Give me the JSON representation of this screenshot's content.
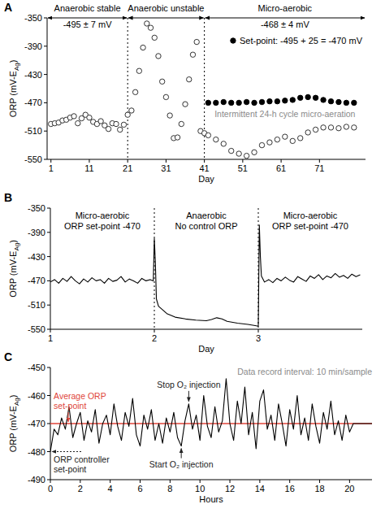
{
  "chart_data": [
    {
      "type": "scatter",
      "panel_label": "A",
      "xlabel": "Day",
      "ylabel": [
        "ORP (mV-E",
        "Ag",
        ")"
      ],
      "xlim": [
        0,
        83
      ],
      "xticks": [
        1,
        11,
        21,
        31,
        41,
        51,
        61,
        71
      ],
      "ylim": [
        -550,
        -350
      ],
      "yticks": [
        -550,
        -510,
        -470,
        -430,
        -390,
        -350
      ],
      "grid": false,
      "legend": "top-right",
      "periods": [
        {
          "label": "Anaerobic stable",
          "sublabel": "-495 ± 7 mV",
          "start": 0,
          "end": 21
        },
        {
          "label": "Anaerobic unstable",
          "start": 21,
          "end": 41
        },
        {
          "label": "Micro-aerobic",
          "sublabel": "-468 ± 4 mV",
          "start": 41,
          "end": 83
        }
      ],
      "notes": [
        "Intermittent 24-h cycle micro-aeration"
      ],
      "series": [
        {
          "marker": "open-circle",
          "color": "#333333",
          "x": [
            1,
            2,
            3,
            4,
            5,
            6,
            7,
            8,
            9,
            10,
            11,
            12,
            13,
            14,
            15,
            16,
            17,
            18,
            19,
            20,
            21,
            22,
            23,
            24,
            25,
            26,
            27,
            28,
            29,
            30,
            31,
            32,
            33,
            34,
            35,
            36,
            37,
            38,
            39,
            40,
            41,
            42,
            44,
            46,
            48,
            50,
            52,
            54,
            56,
            58,
            60,
            62,
            64,
            66,
            68,
            70,
            72,
            74,
            76,
            78,
            80
          ],
          "values": [
            -500,
            -499,
            -498,
            -495,
            -494,
            -491,
            -489,
            -499,
            -492,
            -487,
            -491,
            -497,
            -500,
            -496,
            -502,
            -507,
            -499,
            -500,
            -508,
            -501,
            -487,
            -481,
            -455,
            -425,
            -392,
            -358,
            -364,
            -378,
            -404,
            -440,
            -462,
            -488,
            -520,
            -519,
            -500,
            -472,
            -437,
            -402,
            -384,
            -510,
            -513,
            -516,
            -522,
            -528,
            -538,
            -542,
            -545,
            -540,
            -530,
            -526,
            -522,
            -518,
            -524,
            -520,
            -512,
            -508,
            -505,
            -505,
            -506,
            -504,
            -505
          ]
        },
        {
          "name": "Set-point: -495 + 25 = -470 mV",
          "marker": "circle",
          "color": "#000000",
          "x": [
            42,
            44,
            46,
            48,
            50,
            52,
            54,
            56,
            58,
            60,
            62,
            64,
            66,
            68,
            70,
            72,
            74,
            76,
            78,
            80
          ],
          "values": [
            -470,
            -470,
            -469,
            -470,
            -470,
            -469,
            -470,
            -469,
            -468,
            -468,
            -467,
            -466,
            -463,
            -462,
            -463,
            -466,
            -468,
            -469,
            -470,
            -470
          ]
        }
      ]
    },
    {
      "type": "line",
      "panel_label": "B",
      "xlabel": "Day",
      "ylabel": [
        "ORP (mV-E",
        "Ag",
        ")"
      ],
      "xlim": [
        1,
        4
      ],
      "xticks": [
        1,
        2,
        3
      ],
      "ylim": [
        -550,
        -350
      ],
      "yticks": [
        -550,
        -510,
        -470,
        -430,
        -390,
        -350
      ],
      "grid": false,
      "periods": [
        {
          "label": "Micro-aerobic",
          "sublabel": "ORP set-point -470",
          "start": 1,
          "end": 2
        },
        {
          "label": "Anaerobic",
          "sublabel": "No control ORP",
          "start": 2,
          "end": 3
        },
        {
          "label": "Micro-aerobic",
          "sublabel": "ORP set-point -470",
          "start": 3,
          "end": 4
        }
      ],
      "series": [
        {
          "color": "#000000",
          "x": [
            1,
            1.04,
            1.08,
            1.12,
            1.16,
            1.2,
            1.24,
            1.28,
            1.32,
            1.36,
            1.4,
            1.44,
            1.48,
            1.52,
            1.56,
            1.6,
            1.64,
            1.68,
            1.72,
            1.76,
            1.8,
            1.84,
            1.88,
            1.92,
            1.96,
            1.99,
            2,
            2.01,
            2.02,
            2.04,
            2.08,
            2.12,
            2.2,
            2.3,
            2.4,
            2.5,
            2.55,
            2.6,
            2.65,
            2.7,
            2.8,
            2.9,
            2.97,
            3,
            3.01,
            3.02,
            3.03,
            3.06,
            3.1,
            3.14,
            3.18,
            3.22,
            3.26,
            3.3,
            3.34,
            3.38,
            3.42,
            3.46,
            3.5,
            3.54,
            3.58,
            3.62,
            3.66,
            3.7,
            3.74,
            3.78,
            3.82,
            3.86,
            3.9,
            3.94,
            3.98
          ],
          "values": [
            -472,
            -468,
            -474,
            -466,
            -471,
            -463,
            -470,
            -475,
            -467,
            -472,
            -465,
            -470,
            -468,
            -474,
            -466,
            -471,
            -469,
            -463,
            -472,
            -467,
            -470,
            -474,
            -466,
            -470,
            -468,
            -470,
            -400,
            -440,
            -500,
            -512,
            -518,
            -524,
            -530,
            -533,
            -535,
            -536,
            -534,
            -531,
            -533,
            -537,
            -540,
            -542,
            -544,
            -545,
            -378,
            -430,
            -462,
            -472,
            -468,
            -473,
            -466,
            -470,
            -464,
            -469,
            -472,
            -463,
            -467,
            -471,
            -462,
            -466,
            -460,
            -468,
            -462,
            -465,
            -458,
            -464,
            -461,
            -466,
            -459,
            -463,
            -460
          ]
        }
      ]
    },
    {
      "type": "line",
      "panel_label": "C",
      "xlabel": "Hours",
      "ylabel": [
        "ORP (mV-E",
        "Ag",
        ")"
      ],
      "xlim": [
        0,
        21.5
      ],
      "xticks": [
        0,
        2,
        4,
        6,
        8,
        10,
        12,
        14,
        16,
        18,
        20
      ],
      "ylim": [
        -490,
        -450
      ],
      "yticks": [
        -490,
        -480,
        -470,
        -460,
        -450
      ],
      "grid": false,
      "reference_line": {
        "value": -470,
        "color": "#e0453a"
      },
      "notes": [
        "Data record interval: 10 min/sample"
      ],
      "annotations": [
        {
          "text": [
            "Average ORP",
            "set-point"
          ],
          "x": 1.2,
          "y": -470,
          "color": "#e0453a"
        },
        {
          "text": [
            "ORP controller",
            "set-point"
          ],
          "x": 0,
          "y": -480,
          "line_style": "dotted"
        },
        {
          "text": "Stop O₂ injection",
          "x": 9.25,
          "y": -463
        },
        {
          "text": "Start O₂ injection",
          "x": 8.75,
          "y": -478
        }
      ],
      "series": [
        {
          "color": "#000000",
          "x": [
            0,
            0.25,
            0.5,
            0.75,
            1,
            1.25,
            1.5,
            1.75,
            2,
            2.25,
            2.5,
            2.75,
            3,
            3.25,
            3.5,
            3.75,
            4,
            4.25,
            4.5,
            4.75,
            5,
            5.25,
            5.5,
            5.75,
            6,
            6.25,
            6.5,
            6.75,
            7,
            7.25,
            7.5,
            7.75,
            8,
            8.25,
            8.5,
            8.75,
            9,
            9.25,
            9.5,
            9.75,
            10,
            10.25,
            10.5,
            10.75,
            11,
            11.25,
            11.5,
            11.75,
            12,
            12.25,
            12.5,
            12.75,
            13,
            13.25,
            13.5,
            13.75,
            14,
            14.25,
            14.5,
            14.75,
            15,
            15.25,
            15.5,
            15.75,
            16,
            16.25,
            16.5,
            16.75,
            17,
            17.25,
            17.5,
            17.75,
            18,
            18.25,
            18.5,
            18.75,
            19,
            19.25,
            19.5,
            19.75,
            20,
            20.25,
            20.5,
            20.75,
            21.5
          ],
          "values": [
            -480,
            -472,
            -474,
            -468,
            -472,
            -464,
            -475,
            -470,
            -466,
            -476,
            -469,
            -473,
            -465,
            -477,
            -470,
            -467,
            -474,
            -463,
            -471,
            -476,
            -466,
            -471,
            -461,
            -474,
            -478,
            -467,
            -472,
            -465,
            -476,
            -470,
            -477,
            -468,
            -473,
            -466,
            -475,
            -478,
            -469,
            -463,
            -472,
            -467,
            -476,
            -460,
            -471,
            -475,
            -464,
            -473,
            -469,
            -454,
            -470,
            -476,
            -462,
            -470,
            -457,
            -474,
            -466,
            -479,
            -462,
            -458,
            -472,
            -467,
            -476,
            -463,
            -470,
            -478,
            -465,
            -472,
            -460,
            -474,
            -468,
            -476,
            -463,
            -471,
            -477,
            -466,
            -472,
            -462,
            -474,
            -469,
            -476,
            -467,
            -473,
            -470,
            -470,
            -470,
            -470
          ]
        }
      ]
    }
  ]
}
